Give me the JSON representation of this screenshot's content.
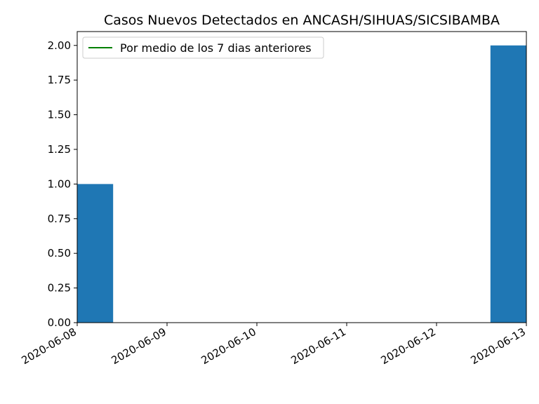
{
  "chart_data": {
    "type": "bar",
    "title": "Casos Nuevos Detectados en ANCASH/SIHUAS/SICSIBAMBA",
    "xlabel": "",
    "ylabel": "",
    "x_ticks": [
      "2020-06-08",
      "2020-06-09",
      "2020-06-10",
      "2020-06-11",
      "2020-06-12",
      "2020-06-13"
    ],
    "bars": [
      {
        "date": "2020-06-08",
        "value": 1.0
      },
      {
        "date": "2020-06-13",
        "value": 2.0
      }
    ],
    "series": [
      {
        "name": "Por medio de los 7 dias anteriores",
        "type": "line",
        "color": "#008000",
        "values": []
      }
    ],
    "y_ticks": [
      "0.00",
      "0.25",
      "0.50",
      "0.75",
      "1.00",
      "1.25",
      "1.50",
      "1.75",
      "2.00"
    ],
    "ylim": [
      0,
      2.1
    ],
    "xlim": [
      "2020-06-08",
      "2020-06-13"
    ],
    "grid": false,
    "legend_position": "top-left",
    "bar_color": "#1f77b4"
  }
}
